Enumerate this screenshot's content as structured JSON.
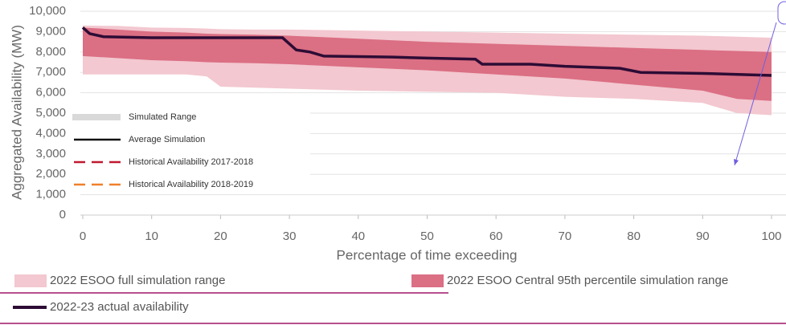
{
  "chart_data": {
    "type": "line",
    "y_label": "Aggregated Availability (MW)",
    "x_label": "Percentage of time exceeding",
    "xlim": [
      0,
      100
    ],
    "ylim": [
      0,
      10000
    ],
    "xticks": [
      0,
      10,
      20,
      30,
      40,
      50,
      60,
      70,
      80,
      90,
      100
    ],
    "yticks": [
      0,
      {
        "value": 1000,
        "label": "1,000"
      },
      {
        "value": 2000,
        "label": "2,000"
      },
      {
        "value": 3000,
        "label": "3,000"
      },
      {
        "value": 4000,
        "label": "4,000"
      },
      {
        "value": 5000,
        "label": "5,000"
      },
      {
        "value": 6000,
        "label": "6,000"
      },
      {
        "value": 7000,
        "label": "7,000"
      },
      {
        "value": 8000,
        "label": "8,000"
      },
      {
        "value": 9000,
        "label": "9,000"
      },
      {
        "value": 10000,
        "label": "10,000"
      }
    ],
    "grid": true,
    "bands": [
      {
        "name": "2022 ESOO full simulation range",
        "color": "#f3c8d0",
        "x": [
          0,
          5,
          10,
          15,
          18,
          20,
          25,
          30,
          40,
          50,
          60,
          70,
          80,
          90,
          95,
          100
        ],
        "upper": [
          9300,
          9280,
          9200,
          9180,
          9150,
          9120,
          9100,
          9100,
          9050,
          9000,
          8950,
          8900,
          8850,
          8800,
          8750,
          8700
        ],
        "lower": [
          6900,
          6900,
          6900,
          6900,
          6800,
          6300,
          6250,
          6200,
          6100,
          6050,
          6000,
          5800,
          5700,
          5500,
          5000,
          4900
        ]
      },
      {
        "name": "2022 ESOO Central 95th percentile simulation range",
        "color": "#db6f84",
        "x": [
          0,
          5,
          10,
          15,
          18,
          20,
          25,
          30,
          40,
          50,
          60,
          70,
          80,
          90,
          95,
          100
        ],
        "upper": [
          9200,
          9100,
          9000,
          8950,
          8900,
          8880,
          8850,
          8800,
          8650,
          8500,
          8400,
          8300,
          8200,
          8100,
          8050,
          8000
        ],
        "lower": [
          7800,
          7700,
          7600,
          7550,
          7500,
          7480,
          7450,
          7400,
          7250,
          7100,
          6900,
          6700,
          6400,
          6100,
          5700,
          5600
        ]
      }
    ],
    "series": [
      {
        "name": "2022-23 actual availability",
        "color": "#2d0c35",
        "x": [
          0,
          1,
          3,
          10,
          29,
          31,
          33,
          35,
          45,
          50,
          57,
          58,
          65,
          70,
          78,
          81,
          90,
          100
        ],
        "values": [
          9200,
          8900,
          8750,
          8700,
          8700,
          8100,
          8000,
          7800,
          7750,
          7700,
          7650,
          7400,
          7400,
          7300,
          7200,
          7000,
          6950,
          6850
        ]
      }
    ],
    "inner_legend": [
      {
        "label": "Simulated Range",
        "color": "#d9d9d9",
        "style": "band"
      },
      {
        "label": "Average Simulation",
        "color": "#111111",
        "style": "solid"
      },
      {
        "label": "Historical Availability 2017-2018",
        "color": "#c0182f",
        "style": "dashed"
      },
      {
        "label": "Historical Availability 2018-2019",
        "color": "#f07f2a",
        "style": "dashed"
      }
    ]
  }
}
